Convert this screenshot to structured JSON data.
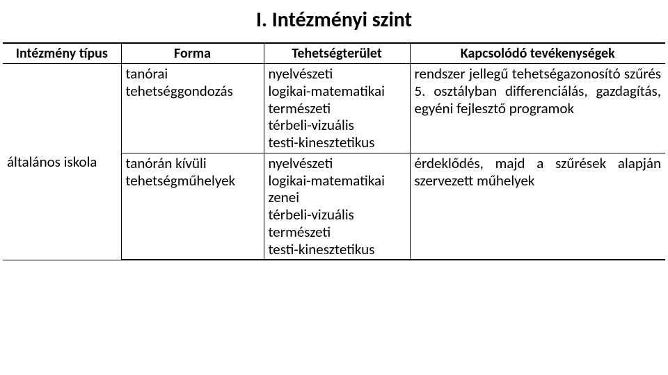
{
  "title": "I. Intézményi szint",
  "table": {
    "headers": [
      "Intézmény típus",
      "Forma",
      "Tehetségterület",
      "Kapcsolódó tevékenységek"
    ],
    "rowspanLabel": "általános iskola",
    "rows": [
      {
        "forma": "tanórai tehetséggondozás",
        "terulet": "nyelvészeti\nlogikai-matematikai\ntermészeti\ntérbeli-vizuális\ntesti-kinesztetikus",
        "tevekenyseg": "rendszer jellegű tehetségazo­nosító szűrés 5. osztályban differenciálás, gazdagítás, egyéni fejlesztő programok"
      },
      {
        "forma": "tanórán kívüli tehetségműhelyek",
        "terulet": "nyelvészeti\nlogikai-matematikai\nzenei\ntérbeli-vizuális\ntermészeti\ntesti-kinesztetikus",
        "tevekenyseg": "érdeklődés, majd a szűrések alapján szervezett műhelyek"
      }
    ]
  },
  "colors": {
    "background": "#ffffff",
    "text": "#000000",
    "border": "#000000"
  },
  "fontsizes": {
    "title": 30,
    "header": 20,
    "cell": 21
  }
}
